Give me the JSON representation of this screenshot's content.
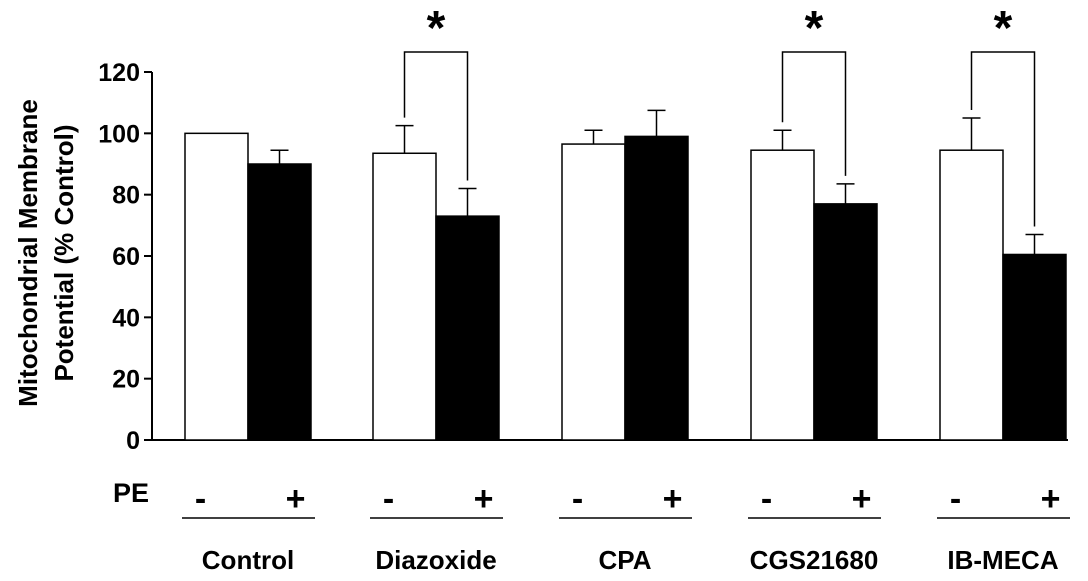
{
  "chart_data": {
    "type": "bar",
    "title": "",
    "ylabel_lines": [
      "Mitochondrial Membrane",
      "Potential (% Control)"
    ],
    "xlabel": "",
    "ylim": [
      0,
      120
    ],
    "yticks": [
      0,
      20,
      40,
      60,
      80,
      100,
      120
    ],
    "categories": [
      "Control",
      "Diazoxide",
      "CPA",
      "CGS21680",
      "IB-MECA"
    ],
    "series": [
      {
        "pe": "-",
        "fill": "#ffffff",
        "values": [
          100,
          93.5,
          96.5,
          94.5,
          94.5
        ],
        "errors": [
          0,
          9,
          4.5,
          6.5,
          10.5
        ]
      },
      {
        "pe": "+",
        "fill": "#000000",
        "values": [
          90,
          73,
          99,
          77,
          60.5
        ],
        "errors": [
          4.5,
          9,
          8.5,
          6.5,
          6.5
        ]
      }
    ],
    "row_label": "PE",
    "significance": [
      {
        "category": "Diazoxide",
        "marker": "*"
      },
      {
        "category": "CGS21680",
        "marker": "*"
      },
      {
        "category": "IB-MECA",
        "marker": "*"
      }
    ],
    "grid": false,
    "legend": "none"
  }
}
